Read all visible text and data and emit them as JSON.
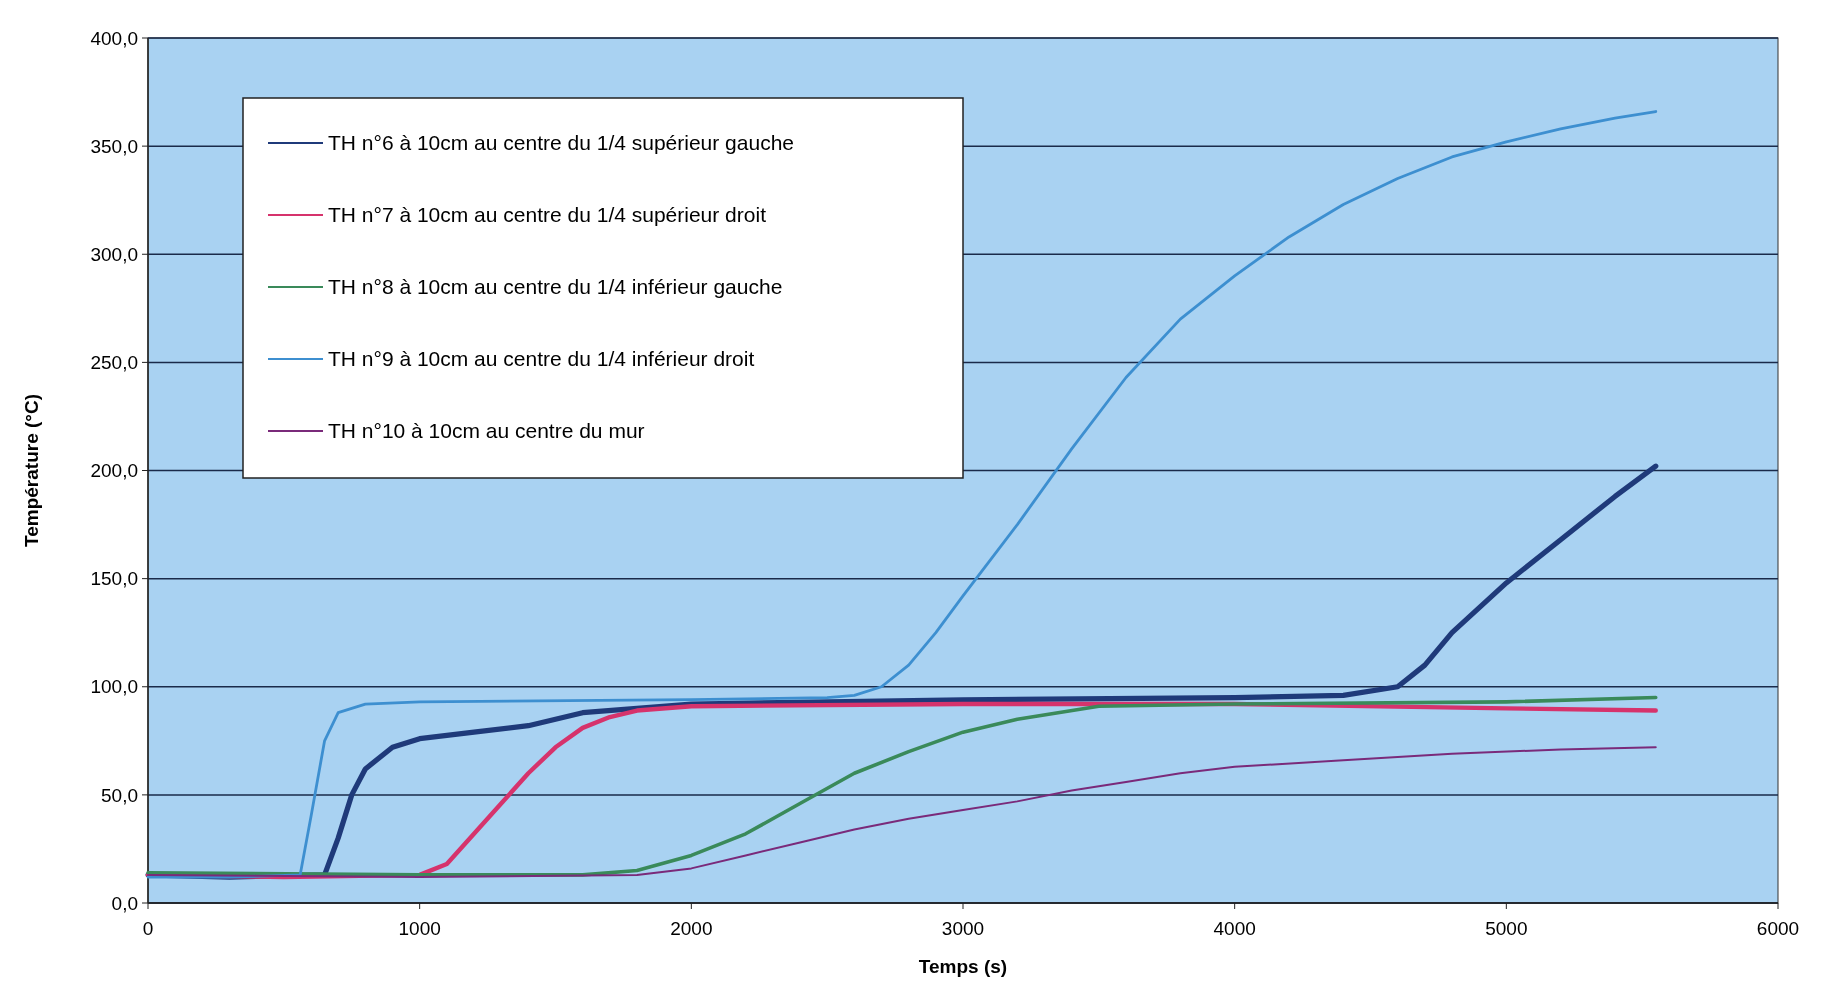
{
  "chart_data": {
    "type": "line",
    "xlabel": "Temps (s)",
    "ylabel": "Température (°C)",
    "xlim": [
      0,
      6000
    ],
    "ylim": [
      0,
      400
    ],
    "xticks": [
      0,
      1000,
      2000,
      3000,
      4000,
      5000,
      6000
    ],
    "yticks": [
      {
        "value": 0,
        "label": "0,0"
      },
      {
        "value": 50,
        "label": "50,0"
      },
      {
        "value": 100,
        "label": "100,0"
      },
      {
        "value": 150,
        "label": "150,0"
      },
      {
        "value": 200,
        "label": "200,0"
      },
      {
        "value": 250,
        "label": "250,0"
      },
      {
        "value": 300,
        "label": "300,0"
      },
      {
        "value": 350,
        "label": "350,0"
      },
      {
        "value": 400,
        "label": "400,0"
      }
    ],
    "grid": "y",
    "legend": "top left",
    "marker": "none",
    "line_style": "solid",
    "series": [
      {
        "name": "TH n°6 à 10cm au centre du 1/4 supérieur gauche",
        "color": "#1f3a7a",
        "x": [
          0,
          300,
          650,
          700,
          750,
          800,
          900,
          1000,
          1200,
          1400,
          1600,
          1800,
          2000,
          3000,
          4000,
          4400,
          4600,
          4700,
          4800,
          5000,
          5200,
          5400,
          5550
        ],
        "values": [
          13,
          12,
          13,
          30,
          50,
          62,
          72,
          76,
          79,
          82,
          88,
          90,
          92,
          94,
          95,
          96,
          100,
          110,
          125,
          148,
          168,
          188,
          202
        ]
      },
      {
        "name": "TH n°7 à 10cm au centre du 1/4 supérieur droit",
        "color": "#d6336c",
        "x": [
          0,
          500,
          1000,
          1100,
          1200,
          1300,
          1400,
          1500,
          1600,
          1700,
          1800,
          2000,
          3000,
          4000,
          5000,
          5550
        ],
        "values": [
          13,
          12,
          13,
          18,
          32,
          46,
          60,
          72,
          81,
          86,
          89,
          91,
          92,
          92,
          90,
          89
        ]
      },
      {
        "name": "TH n°8 à 10cm au centre du 1/4 inférieur gauche",
        "color": "#3a8a5a",
        "x": [
          0,
          1000,
          1600,
          1800,
          2000,
          2200,
          2400,
          2600,
          2800,
          3000,
          3200,
          3500,
          4000,
          5000,
          5550
        ],
        "values": [
          14,
          13,
          13,
          15,
          22,
          32,
          46,
          60,
          70,
          79,
          85,
          91,
          92,
          93,
          95
        ]
      },
      {
        "name": "TH n°9 à 10cm au centre du 1/4 inférieur droit",
        "color": "#3d8fd0",
        "x": [
          0,
          300,
          560,
          600,
          650,
          700,
          800,
          1000,
          2000,
          2500,
          2600,
          2700,
          2800,
          2900,
          3000,
          3200,
          3400,
          3600,
          3800,
          4000,
          4200,
          4400,
          4600,
          4800,
          5000,
          5200,
          5400,
          5550
        ],
        "values": [
          12,
          12,
          13,
          40,
          75,
          88,
          92,
          93,
          94,
          95,
          96,
          100,
          110,
          125,
          142,
          175,
          210,
          243,
          270,
          290,
          308,
          323,
          335,
          345,
          352,
          358,
          363,
          366
        ]
      },
      {
        "name": "TH n°10 à 10cm au centre du mur",
        "color": "#7a2a7a",
        "x": [
          0,
          1000,
          1800,
          2000,
          2200,
          2400,
          2600,
          2800,
          3000,
          3200,
          3400,
          3600,
          3800,
          4000,
          4400,
          4800,
          5200,
          5550
        ],
        "values": [
          13,
          12,
          13,
          16,
          22,
          28,
          34,
          39,
          43,
          47,
          52,
          56,
          60,
          63,
          66,
          69,
          71,
          72
        ]
      }
    ]
  }
}
